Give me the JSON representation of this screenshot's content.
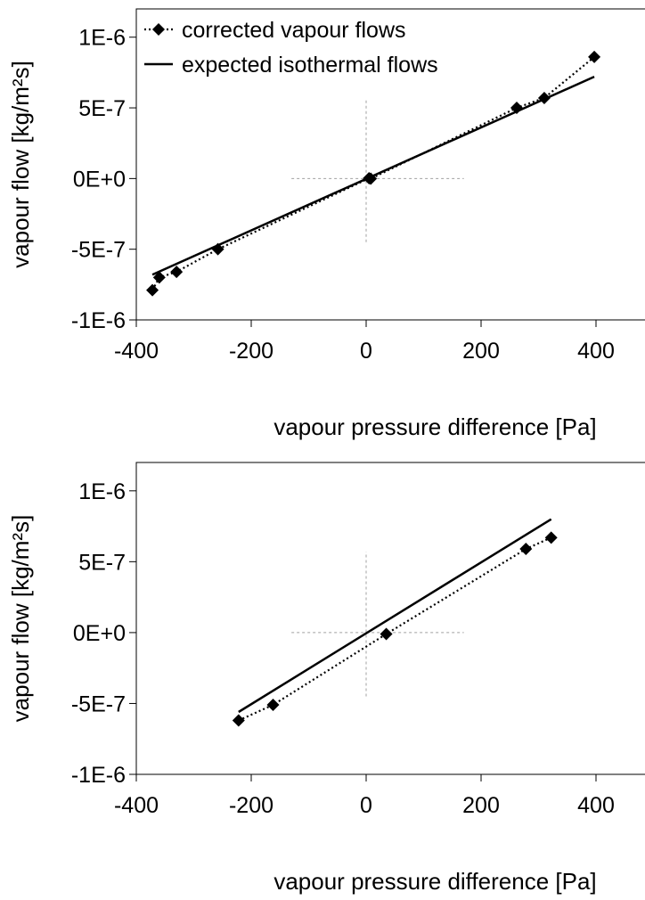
{
  "colors": {
    "background": "#ffffff",
    "axis": "#000000",
    "marker": "#000000",
    "guide_lines": "#a0a0a0"
  },
  "legend": {
    "position": "top-left",
    "items": [
      {
        "label": "corrected vapour flows",
        "style": "dotted-line-with-diamond-markers"
      },
      {
        "label": "expected isothermal flows",
        "style": "solid-line"
      }
    ]
  },
  "chart_data": [
    {
      "type": "scatter",
      "title": "",
      "xlabel": "vapour pressure difference [Pa]",
      "ylabel": "vapour flow [kg/m²s]",
      "xlim": [
        -400,
        450
      ],
      "ylim": [
        -1e-06,
        1.2e-06
      ],
      "x_ticks": [
        -400,
        -200,
        0,
        200,
        400
      ],
      "x_tick_labels": [
        "-400",
        "-200",
        "0",
        "200",
        "400"
      ],
      "y_ticks": [
        -1e-06,
        -5e-07,
        0,
        5e-07,
        1e-06
      ],
      "y_tick_labels": [
        "-1E-6",
        "-5E-7",
        "0E+0",
        "5E-7",
        "1E-6"
      ],
      "grid": false,
      "legend": true,
      "guide_lines": {
        "horizontal_at_y": 0,
        "horizontal_x_range": [
          -130,
          170
        ],
        "vertical_at_x": 0,
        "vertical_y_range": [
          -4.5e-07,
          5.7e-07
        ]
      },
      "series": [
        {
          "name": "corrected vapour flows",
          "line": "dotted",
          "marker": "diamond",
          "x": [
            -372,
            -360,
            -330,
            -258,
            5,
            8,
            262,
            310,
            397
          ],
          "y": [
            -7.9e-07,
            -7e-07,
            -6.6e-07,
            -5e-07,
            2e-09,
            -1e-09,
            5e-07,
            5.7e-07,
            8.6e-07
          ]
        },
        {
          "name": "expected isothermal flows",
          "line": "solid",
          "marker": "none",
          "x": [
            -372,
            397
          ],
          "y": [
            -6.8e-07,
            7.2e-07
          ]
        }
      ]
    },
    {
      "type": "scatter",
      "title": "",
      "xlabel": "vapour pressure difference [Pa]",
      "ylabel": "vapour flow [kg/m²s]",
      "xlim": [
        -400,
        450
      ],
      "ylim": [
        -1e-06,
        1.2e-06
      ],
      "x_ticks": [
        -400,
        -200,
        0,
        200,
        400
      ],
      "x_tick_labels": [
        "-400",
        "-200",
        "0",
        "200",
        "400"
      ],
      "y_ticks": [
        -1e-06,
        -5e-07,
        0,
        5e-07,
        1e-06
      ],
      "y_tick_labels": [
        "-1E-6",
        "-5E-7",
        "0E+0",
        "5E-7",
        "1E-6"
      ],
      "grid": false,
      "legend": false,
      "guide_lines": {
        "horizontal_at_y": 0,
        "horizontal_x_range": [
          -130,
          170
        ],
        "vertical_at_x": 0,
        "vertical_y_range": [
          -4.5e-07,
          5.7e-07
        ]
      },
      "series": [
        {
          "name": "corrected vapour flows",
          "line": "dotted",
          "marker": "diamond",
          "x": [
            -222,
            -162,
            35,
            278,
            322
          ],
          "y": [
            -6.2e-07,
            -5.1e-07,
            -1e-08,
            5.9e-07,
            6.7e-07
          ]
        },
        {
          "name": "expected isothermal flows",
          "line": "solid",
          "marker": "none",
          "x": [
            -222,
            322
          ],
          "y": [
            -5.6e-07,
            8e-07
          ]
        }
      ]
    }
  ]
}
